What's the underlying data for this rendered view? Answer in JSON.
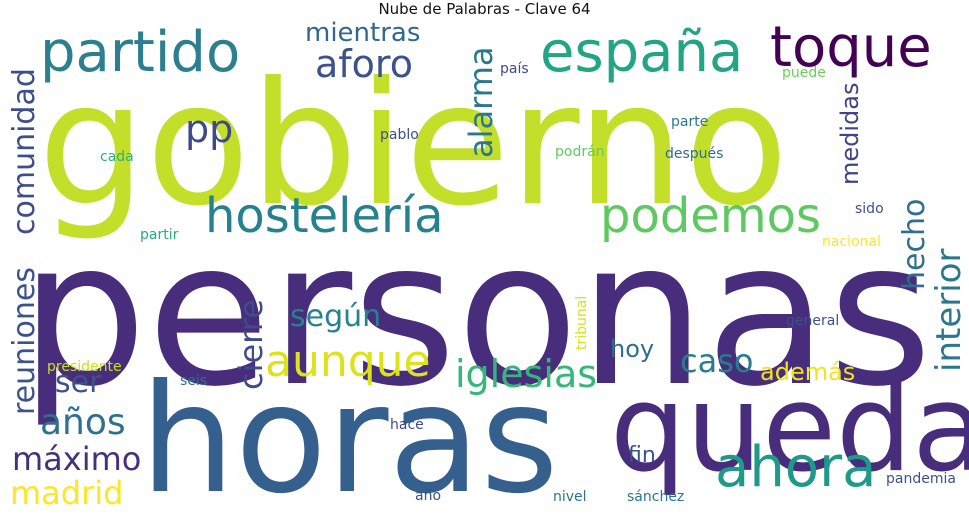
{
  "title": "Nube de Palabras - Clave 64",
  "words": [
    {
      "text": "gobierno",
      "color": "#c4df2a"
    },
    {
      "text": "personas",
      "color": "#472d7b"
    },
    {
      "text": "horas",
      "color": "#355f8d"
    },
    {
      "text": "queda",
      "color": "#472d7b"
    },
    {
      "text": "partido",
      "color": "#2c7f8e"
    },
    {
      "text": "españa",
      "color": "#21a585"
    },
    {
      "text": "toque",
      "color": "#440154"
    },
    {
      "text": "hostelería",
      "color": "#26818e"
    },
    {
      "text": "podemos",
      "color": "#5ec962"
    },
    {
      "text": "aforo",
      "color": "#3b528b"
    },
    {
      "text": "pp",
      "color": "#3e4989"
    },
    {
      "text": "mientras",
      "color": "#31688e"
    },
    {
      "text": "alarma",
      "color": "#2a788e"
    },
    {
      "text": "comunidad",
      "color": "#3d4e8a"
    },
    {
      "text": "reuniones",
      "color": "#3b528b"
    },
    {
      "text": "aunque",
      "color": "#dde318"
    },
    {
      "text": "iglesias",
      "color": "#35b779"
    },
    {
      "text": "caso",
      "color": "#287c8e"
    },
    {
      "text": "ahora",
      "color": "#1f9a8a"
    },
    {
      "text": "cierre",
      "color": "#3e4c8a"
    },
    {
      "text": "según",
      "color": "#26828e"
    },
    {
      "text": "ser",
      "color": "#3b528b"
    },
    {
      "text": "años",
      "color": "#2c728e"
    },
    {
      "text": "máximo",
      "color": "#472f7d"
    },
    {
      "text": "madrid",
      "color": "#fde725"
    },
    {
      "text": "hecho",
      "color": "#2e6e8e"
    },
    {
      "text": "interior",
      "color": "#2a768e"
    },
    {
      "text": "medidas",
      "color": "#414487"
    },
    {
      "text": "hoy",
      "color": "#2e6f8e"
    },
    {
      "text": "además",
      "color": "#f1e51d"
    },
    {
      "text": "fin",
      "color": "#3b528b"
    },
    {
      "text": "país",
      "color": "#3e4a89"
    },
    {
      "text": "puede",
      "color": "#6ccd5a"
    },
    {
      "text": "parte",
      "color": "#2a788e"
    },
    {
      "text": "pablo",
      "color": "#3c4f8a"
    },
    {
      "text": "cada",
      "color": "#2ab07f"
    },
    {
      "text": "podrán",
      "color": "#5ec962"
    },
    {
      "text": "después",
      "color": "#2f6b8e"
    },
    {
      "text": "sido",
      "color": "#3b528b"
    },
    {
      "text": "partir",
      "color": "#25ab82"
    },
    {
      "text": "nacional",
      "color": "#fbe723"
    },
    {
      "text": "tribunal",
      "color": "#d8e219"
    },
    {
      "text": "general",
      "color": "#3b528b"
    },
    {
      "text": "presidente",
      "color": "#c8e020"
    },
    {
      "text": "seis",
      "color": "#2c728e"
    },
    {
      "text": "hace",
      "color": "#3e4989"
    },
    {
      "text": "pandemia",
      "color": "#3b528b"
    },
    {
      "text": "año",
      "color": "#3b528b"
    },
    {
      "text": "nivel",
      "color": "#2c728e"
    },
    {
      "text": "sánchez",
      "color": "#2a788e"
    }
  ]
}
